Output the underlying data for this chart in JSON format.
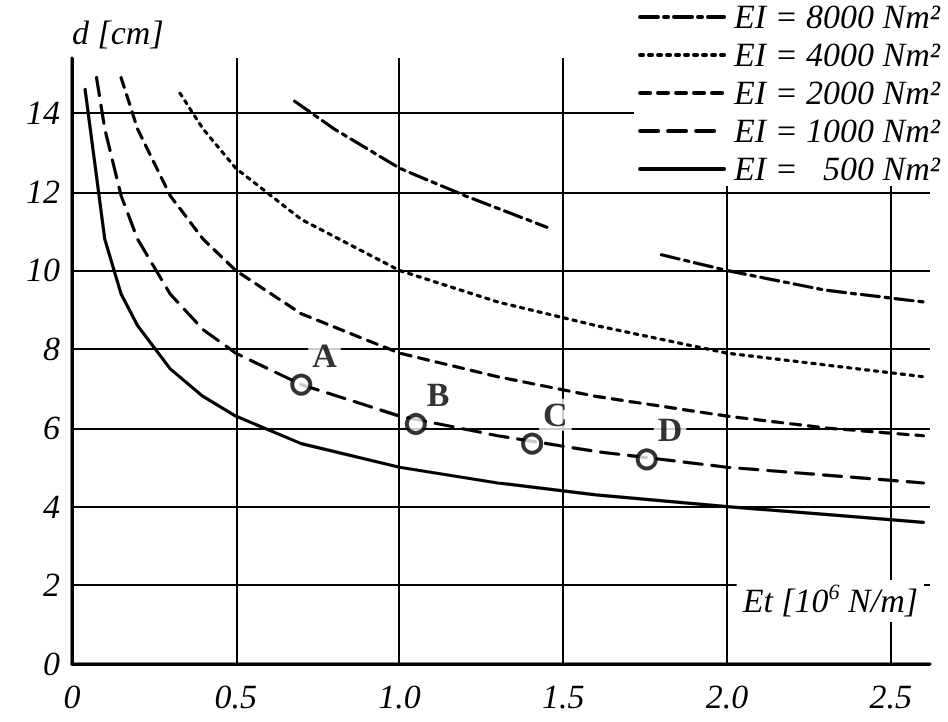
{
  "chart_data": {
    "type": "line",
    "xlabel": "Et [10$^{6}$ N/m]",
    "ylabel": "d [cm]",
    "xlim": [
      0,
      2.62
    ],
    "xticks": [
      0,
      0.5,
      {
        "value": 1,
        "label": "1.0"
      },
      1.5,
      {
        "value": 2,
        "label": "2.0"
      },
      2.5
    ],
    "ylim": [
      0,
      15.4
    ],
    "yticks": [
      0,
      2,
      4,
      6,
      8,
      10,
      12,
      14
    ],
    "grid": true,
    "legend": "top right",
    "marker": "none",
    "series": [
      {
        "name": "EI = 8000 Nm²",
        "color": "#000000",
        "line_style": "dashdot",
        "x": [
          0.68,
          0.8,
          1.0,
          1.2,
          1.45,
          1.6,
          1.8,
          2.0,
          2.3,
          2.6
        ],
        "values": [
          14.3,
          13.6,
          12.6,
          11.9,
          11.1,
          null,
          10.4,
          10.0,
          9.5,
          9.2
        ]
      },
      {
        "name": "EI = 4000 Nm²",
        "color": "#000000",
        "line_style": "dotted",
        "x": [
          0.33,
          0.4,
          0.5,
          0.7,
          1.0,
          1.3,
          1.6,
          2.0,
          2.3,
          2.6
        ],
        "values": [
          14.5,
          13.6,
          12.6,
          11.3,
          10.0,
          9.2,
          8.6,
          7.9,
          7.6,
          7.3
        ]
      },
      {
        "name": "EI = 2000 Nm²",
        "color": "#000000",
        "line_style": "shortdash",
        "x": [
          0.15,
          0.2,
          0.3,
          0.4,
          0.5,
          0.7,
          1.0,
          1.3,
          1.6,
          2.0,
          2.3,
          2.6
        ],
        "values": [
          14.9,
          13.6,
          11.9,
          10.8,
          10.0,
          8.9,
          7.9,
          7.3,
          6.8,
          6.3,
          6.0,
          5.8
        ]
      },
      {
        "name": "EI = 1000 Nm²",
        "color": "#000000",
        "line_style": "dashed",
        "x": [
          0.075,
          0.1,
          0.15,
          0.2,
          0.3,
          0.4,
          0.5,
          0.7,
          1.0,
          1.3,
          1.6,
          2.0,
          2.3,
          2.6
        ],
        "values": [
          14.9,
          13.6,
          11.9,
          10.8,
          9.4,
          8.5,
          7.9,
          7.1,
          6.3,
          5.8,
          5.4,
          5.0,
          4.8,
          4.6
        ]
      },
      {
        "name": "EI =   500 Nm²",
        "color": "#000000",
        "line_style": "solid",
        "x": [
          0.04,
          0.1,
          0.15,
          0.2,
          0.3,
          0.4,
          0.5,
          0.7,
          1.0,
          1.3,
          1.6,
          2.0,
          2.3,
          2.6
        ],
        "values": [
          14.6,
          10.8,
          9.4,
          8.6,
          7.5,
          6.8,
          6.3,
          5.6,
          5.0,
          4.6,
          4.3,
          4.0,
          3.8,
          3.6
        ]
      },
      {
        "type": "scatter",
        "marker": "circle",
        "color": "#000000",
        "x": [
          0.7,
          1.05,
          1.405,
          1.755
        ],
        "values": [
          7.1,
          6.1,
          5.6,
          5.2
        ],
        "value_labels": [
          "A",
          "B",
          "C",
          "D"
        ]
      }
    ]
  }
}
